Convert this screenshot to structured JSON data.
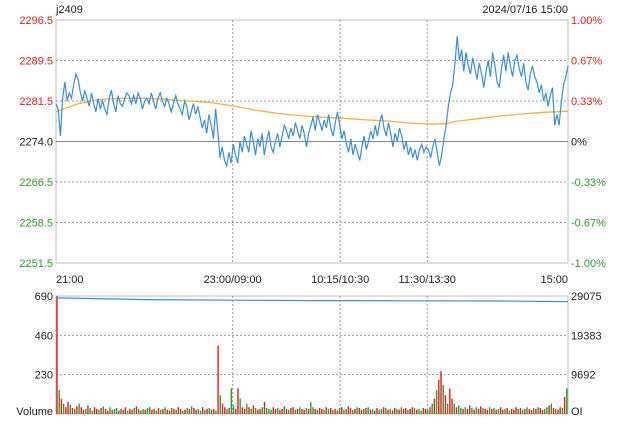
{
  "header": {
    "symbol": "j2409",
    "datetime": "2024/07/16 15:00"
  },
  "colors": {
    "price_line": "#3a8fd6",
    "avg_line": "#f0b23a",
    "oi_line": "#3a8fd6",
    "up": "#e02020",
    "down": "#2a9d2a",
    "neutral_text": "#222222",
    "grid": "#9a9a9a",
    "border": "#bdbdbd"
  },
  "chart_data": [
    {
      "type": "line",
      "name": "price-panel",
      "y_left_ticks": [
        "2296.5",
        "2289.5",
        "2281.5",
        "2274.0",
        "2266.5",
        "2258.5",
        "2251.5"
      ],
      "y_right_ticks": [
        "1.00%",
        "0.67%",
        "0.33%",
        "0%",
        "-0.33%",
        "-0.67%",
        "-1.00%"
      ],
      "ylim": [
        2251.5,
        2296.5
      ],
      "base": 2274.0,
      "x_ticks": [
        "21:00",
        "23:00/09:00",
        "10:15/10:30",
        "11:30/13:30",
        "15:00"
      ],
      "price_points": [
        [
          0,
          2281.0
        ],
        [
          1,
          2280.0
        ],
        [
          2,
          2275.0
        ],
        [
          3,
          2282.0
        ],
        [
          4,
          2285.0
        ],
        [
          5,
          2281.5
        ],
        [
          6,
          2283.0
        ],
        [
          7,
          2282.0
        ],
        [
          8,
          2284.5
        ],
        [
          9,
          2286.5
        ],
        [
          10,
          2285.5
        ],
        [
          11,
          2283.0
        ],
        [
          12,
          2281.5
        ],
        [
          13,
          2283.5
        ],
        [
          14,
          2282.0
        ],
        [
          15,
          2280.5
        ],
        [
          16,
          2283.0
        ],
        [
          17,
          2281.0
        ],
        [
          18,
          2279.5
        ],
        [
          19,
          2282.0
        ],
        [
          20,
          2280.0
        ],
        [
          21,
          2281.5
        ],
        [
          22,
          2280.0
        ],
        [
          23,
          2279.0
        ],
        [
          24,
          2282.0
        ],
        [
          25,
          2283.5
        ],
        [
          26,
          2281.0
        ],
        [
          27,
          2279.5
        ],
        [
          28,
          2282.5
        ],
        [
          29,
          2281.0
        ],
        [
          30,
          2280.5
        ],
        [
          31,
          2282.0
        ],
        [
          32,
          2283.0
        ],
        [
          33,
          2282.5
        ],
        [
          34,
          2281.0
        ],
        [
          35,
          2282.5
        ],
        [
          36,
          2281.0
        ],
        [
          37,
          2283.0
        ],
        [
          38,
          2282.0
        ],
        [
          39,
          2280.0
        ],
        [
          40,
          2281.5
        ],
        [
          41,
          2282.0
        ],
        [
          42,
          2281.0
        ],
        [
          43,
          2283.0
        ],
        [
          44,
          2281.5
        ],
        [
          45,
          2280.0
        ],
        [
          46,
          2282.0
        ],
        [
          47,
          2283.0
        ],
        [
          48,
          2281.5
        ],
        [
          49,
          2280.5
        ],
        [
          50,
          2282.0
        ],
        [
          51,
          2281.0
        ],
        [
          52,
          2279.5
        ],
        [
          53,
          2281.0
        ],
        [
          54,
          2282.5
        ],
        [
          55,
          2281.0
        ],
        [
          56,
          2280.0
        ],
        [
          57,
          2279.0
        ],
        [
          58,
          2281.5
        ],
        [
          59,
          2280.5
        ],
        [
          60,
          2278.0
        ],
        [
          61,
          2279.5
        ],
        [
          62,
          2281.0
        ],
        [
          63,
          2279.0
        ],
        [
          64,
          2280.5
        ],
        [
          65,
          2278.5
        ],
        [
          66,
          2276.5
        ],
        [
          67,
          2278.0
        ],
        [
          68,
          2275.5
        ],
        [
          69,
          2279.0
        ],
        [
          70,
          2277.0
        ],
        [
          71,
          2274.5
        ],
        [
          72,
          2280.0
        ],
        [
          73,
          2276.0
        ],
        [
          74,
          2271.0
        ],
        [
          75,
          2273.0
        ],
        [
          76,
          2270.5
        ],
        [
          77,
          2269.5
        ],
        [
          78,
          2272.0
        ],
        [
          79,
          2270.0
        ],
        [
          80,
          2273.5
        ],
        [
          81,
          2271.5
        ],
        [
          82,
          2270.0
        ],
        [
          83,
          2274.0
        ],
        [
          84,
          2272.0
        ],
        [
          85,
          2275.0
        ],
        [
          86,
          2273.5
        ],
        [
          87,
          2272.0
        ],
        [
          88,
          2276.0
        ],
        [
          89,
          2274.0
        ],
        [
          90,
          2271.5
        ],
        [
          91,
          2274.5
        ],
        [
          92,
          2273.0
        ],
        [
          93,
          2275.5
        ],
        [
          94,
          2271.5
        ],
        [
          95,
          2274.0
        ],
        [
          96,
          2276.0
        ],
        [
          97,
          2273.0
        ],
        [
          98,
          2272.0
        ],
        [
          99,
          2274.0
        ],
        [
          100,
          2275.5
        ],
        [
          101,
          2273.0
        ],
        [
          102,
          2275.0
        ],
        [
          103,
          2277.0
        ],
        [
          104,
          2276.0
        ],
        [
          105,
          2274.5
        ],
        [
          106,
          2276.5
        ],
        [
          107,
          2275.0
        ],
        [
          108,
          2277.5
        ],
        [
          109,
          2276.0
        ],
        [
          110,
          2274.5
        ],
        [
          111,
          2277.0
        ],
        [
          112,
          2275.5
        ],
        [
          113,
          2273.0
        ],
        [
          114,
          2275.5
        ],
        [
          115,
          2277.0
        ],
        [
          116,
          2278.5
        ],
        [
          117,
          2276.0
        ],
        [
          118,
          2279.0
        ],
        [
          119,
          2277.5
        ],
        [
          120,
          2276.0
        ],
        [
          121,
          2278.0
        ],
        [
          122,
          2276.5
        ],
        [
          123,
          2279.0
        ],
        [
          124,
          2276.5
        ],
        [
          125,
          2275.0
        ],
        [
          126,
          2277.5
        ],
        [
          127,
          2279.5
        ],
        [
          128,
          2277.0
        ],
        [
          129,
          2274.5
        ],
        [
          130,
          2276.0
        ],
        [
          131,
          2273.5
        ],
        [
          132,
          2272.0
        ],
        [
          133,
          2274.5
        ],
        [
          134,
          2271.5
        ],
        [
          135,
          2273.5
        ],
        [
          136,
          2272.0
        ],
        [
          137,
          2270.5
        ],
        [
          138,
          2273.0
        ],
        [
          139,
          2275.0
        ],
        [
          140,
          2272.5
        ],
        [
          141,
          2274.0
        ],
        [
          142,
          2276.0
        ],
        [
          143,
          2274.5
        ],
        [
          144,
          2277.0
        ],
        [
          145,
          2275.0
        ],
        [
          146,
          2277.5
        ],
        [
          147,
          2279.0
        ],
        [
          148,
          2276.5
        ],
        [
          149,
          2275.0
        ],
        [
          150,
          2277.5
        ],
        [
          151,
          2275.5
        ],
        [
          152,
          2273.0
        ],
        [
          153,
          2275.5
        ],
        [
          154,
          2274.0
        ],
        [
          155,
          2276.5
        ],
        [
          156,
          2275.0
        ],
        [
          157,
          2272.5
        ],
        [
          158,
          2274.0
        ],
        [
          159,
          2271.5
        ],
        [
          160,
          2273.0
        ],
        [
          161,
          2271.0
        ],
        [
          162,
          2272.5
        ],
        [
          163,
          2270.5
        ],
        [
          164,
          2272.5
        ],
        [
          165,
          2273.5
        ],
        [
          166,
          2272.0
        ],
        [
          167,
          2273.0
        ],
        [
          168,
          2272.5
        ],
        [
          169,
          2271.0
        ],
        [
          170,
          2273.0
        ],
        [
          171,
          2274.5
        ],
        [
          172,
          2272.0
        ],
        [
          173,
          2269.5
        ],
        [
          174,
          2271.5
        ],
        [
          175,
          2274.5
        ],
        [
          176,
          2277.0
        ],
        [
          177,
          2280.5
        ],
        [
          178,
          2283.0
        ],
        [
          179,
          2284.5
        ],
        [
          180,
          2288.5
        ],
        [
          181,
          2293.5
        ],
        [
          182,
          2289.0
        ],
        [
          183,
          2291.0
        ],
        [
          184,
          2287.0
        ],
        [
          185,
          2290.5
        ],
        [
          186,
          2288.0
        ],
        [
          187,
          2286.5
        ],
        [
          188,
          2289.5
        ],
        [
          189,
          2287.5
        ],
        [
          190,
          2285.5
        ],
        [
          191,
          2288.5
        ],
        [
          192,
          2286.5
        ],
        [
          193,
          2284.0
        ],
        [
          194,
          2287.0
        ],
        [
          195,
          2289.0
        ],
        [
          196,
          2286.0
        ],
        [
          197,
          2290.5
        ],
        [
          198,
          2288.0
        ],
        [
          199,
          2285.0
        ],
        [
          200,
          2284.0
        ],
        [
          201,
          2287.5
        ],
        [
          202,
          2290.0
        ],
        [
          203,
          2287.0
        ],
        [
          204,
          2290.5
        ],
        [
          205,
          2288.0
        ],
        [
          206,
          2286.0
        ],
        [
          207,
          2289.0
        ],
        [
          208,
          2290.0
        ],
        [
          209,
          2287.5
        ],
        [
          210,
          2286.0
        ],
        [
          211,
          2288.5
        ],
        [
          212,
          2285.0
        ],
        [
          213,
          2283.5
        ],
        [
          214,
          2286.5
        ],
        [
          215,
          2288.0
        ],
        [
          216,
          2286.0
        ],
        [
          217,
          2285.0
        ],
        [
          218,
          2283.0
        ],
        [
          219,
          2284.5
        ],
        [
          220,
          2281.5
        ],
        [
          221,
          2283.0
        ],
        [
          222,
          2280.5
        ],
        [
          223,
          2282.5
        ],
        [
          224,
          2284.0
        ],
        [
          225,
          2277.0
        ],
        [
          226,
          2279.0
        ],
        [
          227,
          2277.0
        ],
        [
          228,
          2281.5
        ],
        [
          229,
          2284.5
        ],
        [
          230,
          2286.0
        ],
        [
          231,
          2288.0
        ]
      ],
      "avg_points": [
        [
          0,
          2279.5
        ],
        [
          10,
          2281.0
        ],
        [
          20,
          2281.8
        ],
        [
          30,
          2282.0
        ],
        [
          40,
          2282.0
        ],
        [
          50,
          2281.8
        ],
        [
          60,
          2281.5
        ],
        [
          70,
          2281.2
        ],
        [
          80,
          2280.6
        ],
        [
          90,
          2279.8
        ],
        [
          100,
          2279.2
        ],
        [
          110,
          2278.8
        ],
        [
          120,
          2278.5
        ],
        [
          130,
          2278.3
        ],
        [
          140,
          2278.0
        ],
        [
          150,
          2277.8
        ],
        [
          160,
          2277.4
        ],
        [
          170,
          2277.2
        ],
        [
          176,
          2277.3
        ],
        [
          180,
          2277.7
        ],
        [
          190,
          2278.2
        ],
        [
          200,
          2278.7
        ],
        [
          210,
          2279.1
        ],
        [
          220,
          2279.4
        ],
        [
          231,
          2279.6
        ]
      ]
    },
    {
      "type": "bar",
      "name": "volume-panel",
      "y_left_ticks": [
        "690",
        "460",
        "230"
      ],
      "y_right_ticks": [
        "29075",
        "19383",
        "9692"
      ],
      "left_label": "Volume",
      "right_label": "OI",
      "ylim": [
        0,
        690
      ],
      "oi_ylim": [
        0,
        29075
      ],
      "oi_points": [
        [
          0,
          28600
        ],
        [
          40,
          28200
        ],
        [
          80,
          28050
        ],
        [
          120,
          27950
        ],
        [
          160,
          27900
        ],
        [
          200,
          27850
        ],
        [
          231,
          27700
        ]
      ],
      "volumes": [
        690,
        140,
        90,
        60,
        40,
        70,
        55,
        35,
        30,
        45,
        60,
        40,
        25,
        30,
        50,
        35,
        20,
        40,
        30,
        25,
        35,
        45,
        30,
        20,
        40,
        25,
        30,
        35,
        20,
        30,
        25,
        40,
        20,
        30,
        25,
        35,
        45,
        30,
        20,
        30,
        25,
        35,
        40,
        25,
        30,
        20,
        35,
        25,
        30,
        40,
        25,
        20,
        35,
        30,
        25,
        40,
        30,
        20,
        25,
        35,
        30,
        45,
        35,
        25,
        30,
        20,
        40,
        25,
        30,
        35,
        25,
        30,
        20,
        400,
        110,
        60,
        40,
        30,
        35,
        150,
        50,
        30,
        150,
        90,
        40,
        30,
        60,
        40,
        30,
        50,
        35,
        25,
        30,
        40,
        70,
        35,
        30,
        25,
        40,
        30,
        35,
        25,
        30,
        45,
        30,
        25,
        35,
        40,
        25,
        30,
        40,
        30,
        25,
        35,
        30,
        70,
        40,
        30,
        25,
        35,
        30,
        25,
        40,
        30,
        35,
        25,
        30,
        20,
        35,
        40,
        25,
        30,
        45,
        35,
        25,
        30,
        40,
        35,
        25,
        30,
        35,
        40,
        25,
        30,
        20,
        35,
        25,
        30,
        40,
        35,
        25,
        30,
        20,
        35,
        30,
        25,
        40,
        30,
        35,
        25,
        30,
        40,
        35,
        25,
        30,
        20,
        35,
        30,
        25,
        40,
        60,
        90,
        140,
        200,
        250,
        170,
        110,
        60,
        150,
        90,
        60,
        40,
        50,
        35,
        30,
        40,
        30,
        50,
        35,
        25,
        40,
        30,
        45,
        35,
        30,
        25,
        40,
        30,
        35,
        25,
        30,
        40,
        25,
        30,
        35,
        20,
        30,
        25,
        40,
        30,
        35,
        25,
        30,
        40,
        30,
        25,
        35,
        30,
        40,
        35,
        25,
        30,
        40,
        50,
        60,
        35,
        30,
        25,
        40,
        35,
        100,
        150
      ],
      "colors_seq": "rgrgrrgrgrgrrgrggrrgrgrrgrggrgrrgrrgrgrgrggrrgrgrgrrgrgrrgrgrgrrggrgrgrrgrgrrgrggrrgrrgrgrgrrgrgggrrgrrgrgrrgrgrrgrggrgrrgrgrgrrgrggrrgrgrrgrgrgrrggrgrgrrgrgrrgrrgrggrrgrgrgrrgrgrrgrggrgrrgrgrrgrrgrgrgrrgrgrrrgrgrgrrgrgrrggrgrgrrgrgrg"
    }
  ]
}
